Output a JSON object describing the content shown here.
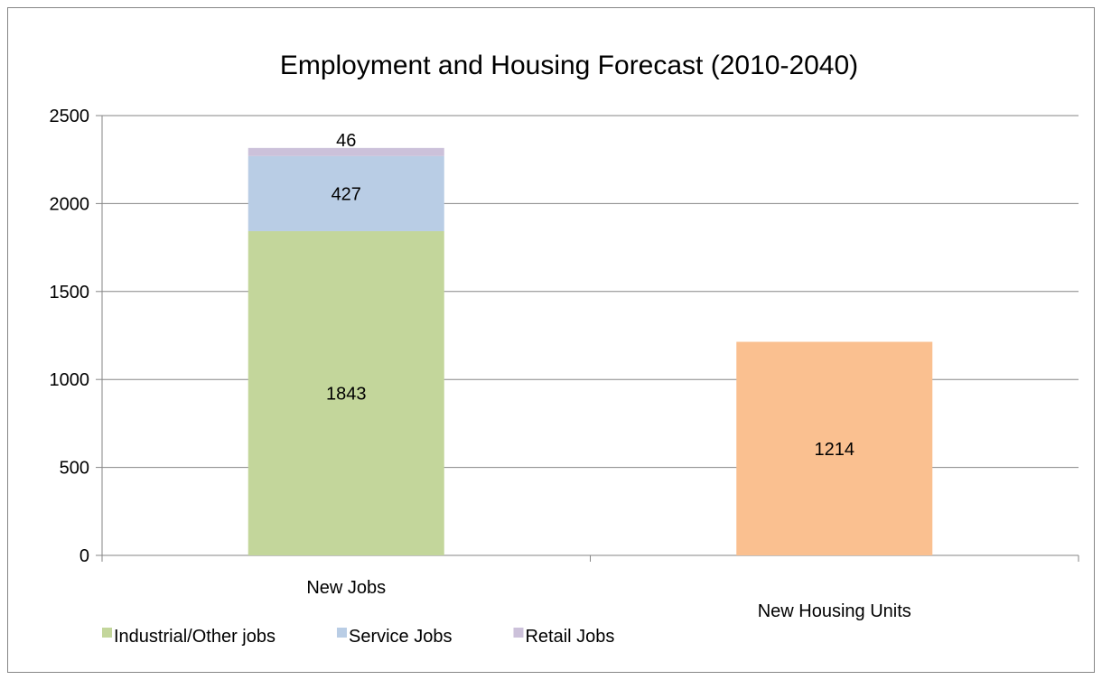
{
  "chart_data": {
    "type": "bar",
    "stacked": true,
    "title": "Employment and Housing Forecast (2010-2040)",
    "xlabel": "",
    "ylabel": "",
    "ylim": [
      0,
      2500
    ],
    "yticks": [
      0,
      500,
      1000,
      1500,
      2000,
      2500
    ],
    "grid": true,
    "legend_position": "bottom",
    "categories": [
      "New Jobs",
      "New Housing Units"
    ],
    "series": [
      {
        "name": "Industrial/Other jobs",
        "color": "#c3d69b",
        "values": [
          1843,
          null
        ],
        "in_legend": true
      },
      {
        "name": "Service Jobs",
        "color": "#b9cde5",
        "values": [
          427,
          null
        ],
        "in_legend": true
      },
      {
        "name": "Retail Jobs",
        "color": "#ccc1da",
        "values": [
          46,
          null
        ],
        "in_legend": true
      },
      {
        "name": "",
        "color": "#fac090",
        "values": [
          null,
          1214
        ],
        "in_legend": false
      }
    ]
  }
}
